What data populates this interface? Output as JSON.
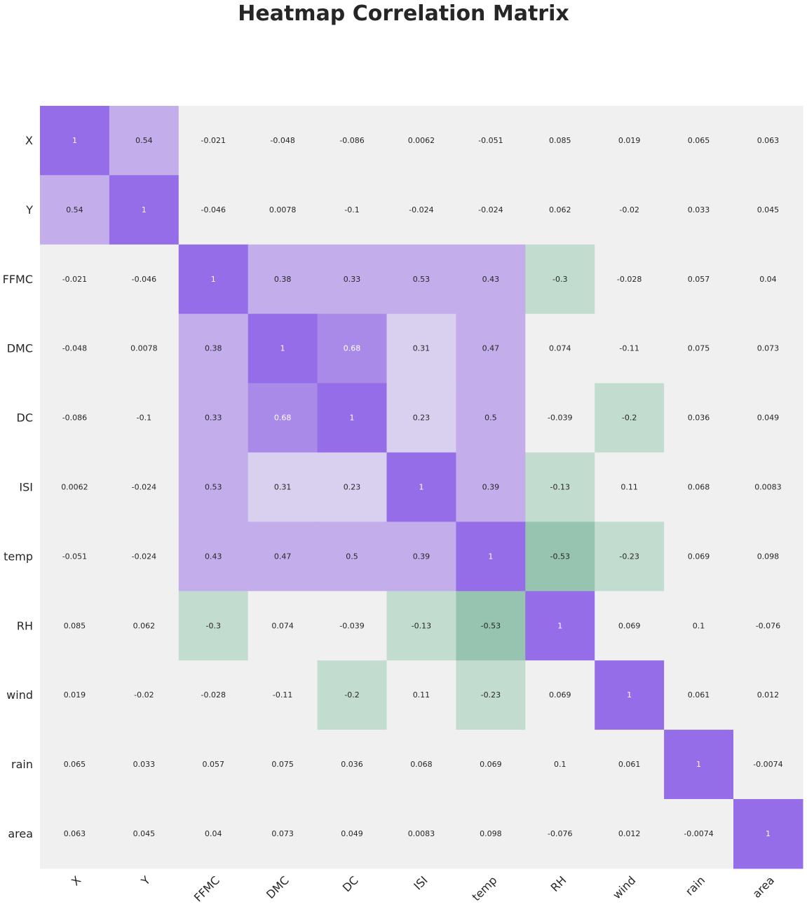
{
  "chart_data": {
    "type": "heatmap",
    "title": "Heatmap Correlation Matrix",
    "xlabel": "",
    "ylabel": "",
    "row_labels": [
      "X",
      "Y",
      "FFMC",
      "DMC",
      "DC",
      "ISI",
      "temp",
      "RH",
      "wind",
      "rain",
      "area"
    ],
    "col_labels": [
      "X",
      "Y",
      "FFMC",
      "DMC",
      "DC",
      "ISI",
      "temp",
      "RH",
      "wind",
      "rain",
      "area"
    ],
    "values": [
      [
        1,
        0.54,
        -0.021,
        -0.048,
        -0.086,
        0.0062,
        -0.051,
        0.085,
        0.019,
        0.065,
        0.063
      ],
      [
        0.54,
        1,
        -0.046,
        0.0078,
        -0.1,
        -0.024,
        -0.024,
        0.062,
        -0.02,
        0.033,
        0.045
      ],
      [
        -0.021,
        -0.046,
        1,
        0.38,
        0.33,
        0.53,
        0.43,
        -0.3,
        -0.028,
        0.057,
        0.04
      ],
      [
        -0.048,
        0.0078,
        0.38,
        1,
        0.68,
        0.31,
        0.47,
        0.074,
        -0.11,
        0.075,
        0.073
      ],
      [
        -0.086,
        -0.1,
        0.33,
        0.68,
        1,
        0.23,
        0.5,
        -0.039,
        -0.2,
        0.036,
        0.049
      ],
      [
        0.0062,
        -0.024,
        0.53,
        0.31,
        0.23,
        1,
        0.39,
        -0.13,
        0.11,
        0.068,
        0.0083
      ],
      [
        -0.051,
        -0.024,
        0.43,
        0.47,
        0.5,
        0.39,
        1,
        -0.53,
        -0.23,
        0.069,
        0.098
      ],
      [
        0.085,
        0.062,
        -0.3,
        0.074,
        -0.039,
        -0.13,
        -0.53,
        1,
        0.069,
        0.1,
        -0.076
      ],
      [
        0.019,
        -0.02,
        -0.028,
        -0.11,
        -0.2,
        0.11,
        -0.23,
        0.069,
        1,
        0.061,
        0.012
      ],
      [
        0.065,
        0.033,
        0.057,
        0.075,
        0.036,
        0.068,
        0.069,
        0.1,
        0.061,
        1,
        -0.0074
      ],
      [
        0.063,
        0.045,
        0.04,
        0.073,
        0.049,
        0.0083,
        0.098,
        -0.076,
        0.012,
        -0.0074,
        1
      ]
    ],
    "grid": false,
    "legend": "none",
    "colors": {
      "background": "#f0f0f0",
      "purple_strong": "#956de8",
      "purple_mid": "#a98ae9",
      "purple_light": "#c3aeeb",
      "purple_faint": "#d9cfef",
      "green_light": "#c2dccf",
      "green_mid": "#96c4b1",
      "text_dark": "#262626",
      "text_light": "#ffffff"
    }
  }
}
